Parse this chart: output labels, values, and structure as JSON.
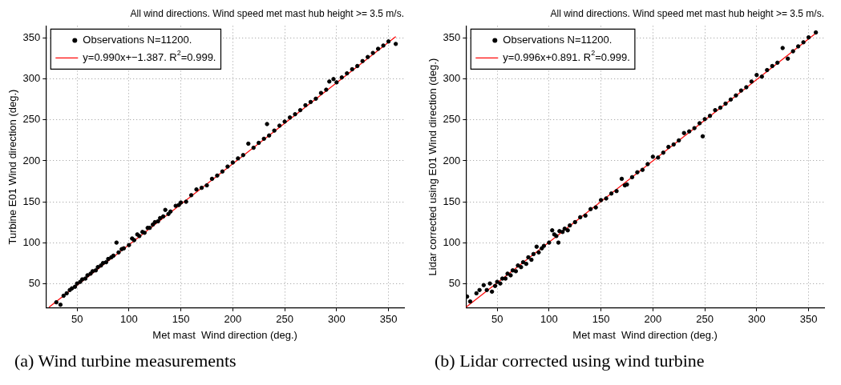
{
  "chart_data": [
    {
      "type": "scatter",
      "title": "All wind directions. Wind speed met mast hub height >= 3.5 m/s.",
      "xlabel": "Met mast  Wind direction (deg.)",
      "ylabel": "Turbine E01 Wind direction (deg.)",
      "xlim": [
        20,
        365
      ],
      "ylim": [
        20,
        365
      ],
      "xticks": [
        50,
        100,
        150,
        200,
        250,
        300,
        350
      ],
      "yticks": [
        50,
        100,
        150,
        200,
        250,
        300,
        350
      ],
      "grid": true,
      "legend": "top left",
      "marker": "circle",
      "annotations": [
        "(a) Wind turbine measurements"
      ],
      "series": [
        {
          "name": "Observations N=11200.",
          "color": "#000000",
          "x": [
            30,
            34,
            37,
            40,
            43,
            45,
            48,
            50,
            53,
            55,
            58,
            60,
            63,
            65,
            68,
            70,
            73,
            75,
            78,
            80,
            83,
            85,
            88,
            90,
            93,
            95,
            100,
            103,
            105,
            108,
            110,
            113,
            115,
            118,
            120,
            123,
            125,
            128,
            130,
            133,
            135,
            138,
            140,
            145,
            148,
            150,
            155,
            160,
            165,
            170,
            175,
            180,
            185,
            190,
            195,
            200,
            205,
            210,
            215,
            220,
            225,
            230,
            233,
            235,
            240,
            245,
            250,
            255,
            260,
            265,
            270,
            275,
            280,
            285,
            290,
            293,
            297,
            300,
            305,
            310,
            315,
            320,
            325,
            330,
            335,
            340,
            345,
            350,
            357
          ],
          "values": [
            27,
            24,
            35,
            38,
            42,
            44,
            46,
            50,
            52,
            55,
            56,
            60,
            62,
            65,
            66,
            70,
            72,
            75,
            76,
            80,
            82,
            84,
            100,
            88,
            92,
            93,
            97,
            105,
            103,
            110,
            108,
            113,
            112,
            118,
            118,
            122,
            125,
            126,
            130,
            132,
            140,
            135,
            138,
            145,
            146,
            149,
            150,
            158,
            165,
            167,
            170,
            178,
            182,
            187,
            193,
            198,
            203,
            207,
            221,
            216,
            222,
            227,
            245,
            231,
            237,
            243,
            248,
            253,
            257,
            262,
            268,
            272,
            276,
            283,
            287,
            297,
            300,
            296,
            302,
            307,
            312,
            316,
            322,
            327,
            332,
            337,
            341,
            346,
            343
          ]
        },
        {
          "type": "line",
          "name": "y=0.990x+−1.387. R$^{2}$=0.999.",
          "color": "#ff0000",
          "marker": "none",
          "x": [
            23,
            357
          ],
          "values": [
            21,
            352
          ]
        }
      ]
    },
    {
      "type": "scatter",
      "title": "All wind directions. Wind speed met mast hub height >= 3.5 m/s.",
      "xlabel": "Met mast  Wind direction (deg.)",
      "ylabel": "Lidar corrected using E01 Wind direction (deg.)",
      "xlim": [
        20,
        365
      ],
      "ylim": [
        20,
        365
      ],
      "xticks": [
        50,
        100,
        150,
        200,
        250,
        300,
        350
      ],
      "yticks": [
        50,
        100,
        150,
        200,
        250,
        300,
        350
      ],
      "grid": true,
      "legend": "top left",
      "marker": "circle",
      "annotations": [
        "(b) Lidar corrected using wind turbine"
      ],
      "series": [
        {
          "name": "Observations N=11200.",
          "color": "#000000",
          "x": [
            21,
            24,
            30,
            33,
            37,
            40,
            43,
            45,
            48,
            50,
            53,
            55,
            58,
            60,
            63,
            65,
            68,
            70,
            73,
            75,
            78,
            80,
            83,
            85,
            88,
            90,
            93,
            95,
            100,
            103,
            105,
            107,
            109,
            110,
            113,
            115,
            118,
            120,
            125,
            130,
            135,
            140,
            145,
            150,
            155,
            160,
            165,
            170,
            173,
            175,
            180,
            185,
            190,
            195,
            200,
            205,
            210,
            215,
            220,
            225,
            230,
            235,
            240,
            245,
            248,
            250,
            255,
            260,
            265,
            270,
            275,
            280,
            285,
            290,
            295,
            300,
            305,
            310,
            315,
            320,
            325,
            330,
            335,
            340,
            345,
            350,
            357
          ],
          "values": [
            34,
            28,
            38,
            42,
            48,
            42,
            50,
            40,
            47,
            52,
            50,
            56,
            56,
            62,
            60,
            66,
            65,
            72,
            70,
            76,
            74,
            82,
            79,
            86,
            95,
            88,
            93,
            96,
            100,
            115,
            110,
            108,
            100,
            114,
            113,
            117,
            115,
            121,
            125,
            131,
            133,
            141,
            143,
            152,
            154,
            160,
            163,
            178,
            170,
            171,
            180,
            186,
            189,
            196,
            205,
            204,
            210,
            217,
            220,
            225,
            234,
            236,
            240,
            246,
            230,
            251,
            255,
            262,
            265,
            270,
            275,
            280,
            286,
            290,
            297,
            305,
            303,
            311,
            316,
            320,
            338,
            325,
            334,
            340,
            345,
            351,
            357
          ]
        },
        {
          "type": "line",
          "name": "y=0.996x+0.891. R$^{2}$=0.999.",
          "color": "#ff0000",
          "marker": "none",
          "x": [
            20,
            357
          ],
          "values": [
            21,
            356
          ]
        }
      ]
    }
  ]
}
